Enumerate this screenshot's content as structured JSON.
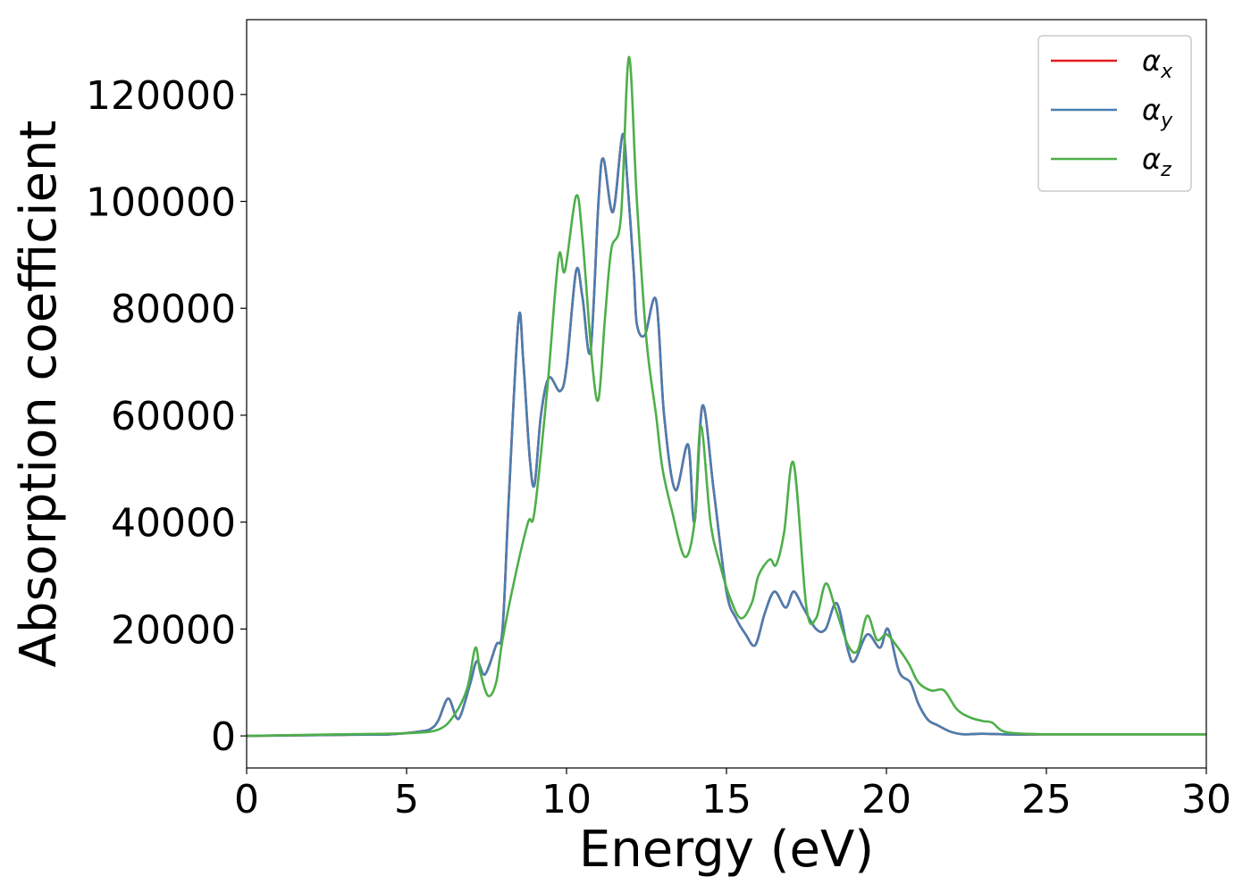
{
  "chart_data": {
    "type": "line",
    "xlabel": "Energy (eV)",
    "ylabel": "Absorption coefficient",
    "xlim": [
      0,
      30
    ],
    "ylim": [
      -6000,
      134000
    ],
    "x_ticks": [
      0,
      5,
      10,
      15,
      20,
      25,
      30
    ],
    "y_ticks": [
      0,
      20000,
      40000,
      60000,
      80000,
      100000,
      120000
    ],
    "x_tick_labels": [
      "0",
      "5",
      "10",
      "15",
      "20",
      "25",
      "30"
    ],
    "y_tick_labels": [
      "0",
      "20000",
      "40000",
      "60000",
      "80000",
      "100000",
      "120000"
    ],
    "grid": false,
    "legend_position": "top-right",
    "series": [
      {
        "name": "α",
        "subscript": "x",
        "color": "#e41a1c",
        "x": [
          0,
          3,
          4.5,
          5.5,
          5.8,
          6.0,
          6.3,
          6.55,
          6.7,
          7.0,
          7.2,
          7.45,
          7.8,
          8.0,
          8.2,
          8.5,
          8.65,
          8.85,
          9.0,
          9.2,
          9.45,
          9.8,
          10.0,
          10.3,
          10.5,
          10.75,
          11.0,
          11.15,
          11.45,
          11.75,
          11.9,
          12.1,
          12.2,
          12.45,
          12.8,
          13.05,
          13.4,
          13.8,
          14.0,
          14.25,
          14.6,
          15.0,
          15.3,
          15.6,
          15.9,
          16.2,
          16.5,
          16.85,
          17.1,
          17.4,
          17.8,
          18.1,
          18.45,
          18.8,
          19.0,
          19.4,
          19.8,
          20.05,
          20.4,
          20.75,
          21.0,
          21.3,
          21.6,
          22.0,
          22.4,
          23.0,
          24.0,
          25.0,
          27.0,
          30.0
        ],
        "values": [
          0,
          200,
          300,
          900,
          1500,
          3000,
          7000,
          3500,
          4000,
          10000,
          14000,
          11500,
          17000,
          20000,
          45000,
          78000,
          70000,
          52000,
          47000,
          60000,
          67000,
          64500,
          69000,
          87000,
          82000,
          72000,
          100000,
          108000,
          98000,
          112500,
          104000,
          87000,
          77000,
          75000,
          81500,
          60000,
          46000,
          54500,
          40000,
          61800,
          46000,
          27000,
          22000,
          19000,
          17000,
          23000,
          27000,
          24000,
          27000,
          24000,
          20000,
          20000,
          24800,
          16000,
          14000,
          19000,
          16500,
          20000,
          12000,
          10000,
          6000,
          3000,
          2000,
          800,
          300,
          400,
          250,
          300,
          300,
          300
        ]
      },
      {
        "name": "α",
        "subscript": "y",
        "color": "#4a7eb0",
        "x": [
          0,
          3,
          4.5,
          5.5,
          5.8,
          6.0,
          6.3,
          6.55,
          6.7,
          7.0,
          7.2,
          7.45,
          7.8,
          8.0,
          8.2,
          8.5,
          8.65,
          8.85,
          9.0,
          9.2,
          9.45,
          9.8,
          10.0,
          10.3,
          10.5,
          10.75,
          11.0,
          11.15,
          11.45,
          11.75,
          11.9,
          12.1,
          12.2,
          12.45,
          12.8,
          13.05,
          13.4,
          13.8,
          14.0,
          14.25,
          14.6,
          15.0,
          15.3,
          15.6,
          15.9,
          16.2,
          16.5,
          16.85,
          17.1,
          17.4,
          17.8,
          18.1,
          18.45,
          18.8,
          19.0,
          19.4,
          19.8,
          20.05,
          20.4,
          20.75,
          21.0,
          21.3,
          21.6,
          22.0,
          22.4,
          23.0,
          24.0,
          25.0,
          27.0,
          30.0
        ],
        "values": [
          0,
          200,
          300,
          900,
          1500,
          3000,
          7000,
          3500,
          4000,
          10000,
          14000,
          11500,
          17000,
          20000,
          45000,
          78000,
          70000,
          52000,
          47000,
          60000,
          67000,
          64500,
          69000,
          87000,
          82000,
          72000,
          100000,
          108000,
          98000,
          112500,
          104000,
          87000,
          77000,
          75000,
          81500,
          60000,
          46000,
          54500,
          40000,
          61800,
          46000,
          27000,
          22000,
          19000,
          17000,
          23000,
          27000,
          24000,
          27000,
          24000,
          20000,
          20000,
          24800,
          16000,
          14000,
          19000,
          16500,
          20000,
          12000,
          10000,
          6000,
          3000,
          2000,
          800,
          300,
          400,
          250,
          300,
          300,
          300
        ]
      },
      {
        "name": "α",
        "subscript": "z",
        "color": "#4daf4a",
        "x": [
          0,
          3,
          5,
          6.0,
          6.5,
          6.9,
          7.15,
          7.3,
          7.55,
          7.8,
          8.0,
          8.4,
          8.8,
          9.0,
          9.4,
          9.75,
          9.95,
          10.3,
          10.5,
          10.8,
          11.0,
          11.2,
          11.4,
          11.7,
          11.95,
          12.2,
          12.5,
          12.8,
          13.0,
          13.3,
          13.7,
          14.0,
          14.2,
          14.5,
          14.8,
          15.1,
          15.45,
          15.8,
          16.0,
          16.35,
          16.55,
          16.8,
          17.1,
          17.5,
          17.8,
          18.1,
          18.4,
          18.8,
          19.1,
          19.4,
          19.7,
          20.0,
          20.3,
          20.7,
          21.0,
          21.4,
          21.8,
          22.2,
          22.6,
          23.0,
          23.3,
          23.6,
          24.0,
          25.0,
          27.0,
          30.0
        ],
        "values": [
          0,
          300,
          500,
          1200,
          4000,
          9000,
          16500,
          12000,
          7500,
          10000,
          18000,
          30000,
          40000,
          42000,
          65000,
          89500,
          87000,
          101000,
          93000,
          70000,
          63000,
          78000,
          91000,
          97000,
          127000,
          100000,
          74000,
          60000,
          50000,
          42000,
          33500,
          40000,
          58000,
          40000,
          32000,
          26000,
          22000,
          25000,
          30000,
          33000,
          32000,
          38000,
          51000,
          24000,
          22000,
          28500,
          24000,
          17000,
          16000,
          22500,
          18000,
          19000,
          17000,
          13500,
          10000,
          8500,
          8500,
          5000,
          3500,
          2800,
          2500,
          1000,
          500,
          300,
          300,
          300
        ]
      }
    ]
  }
}
